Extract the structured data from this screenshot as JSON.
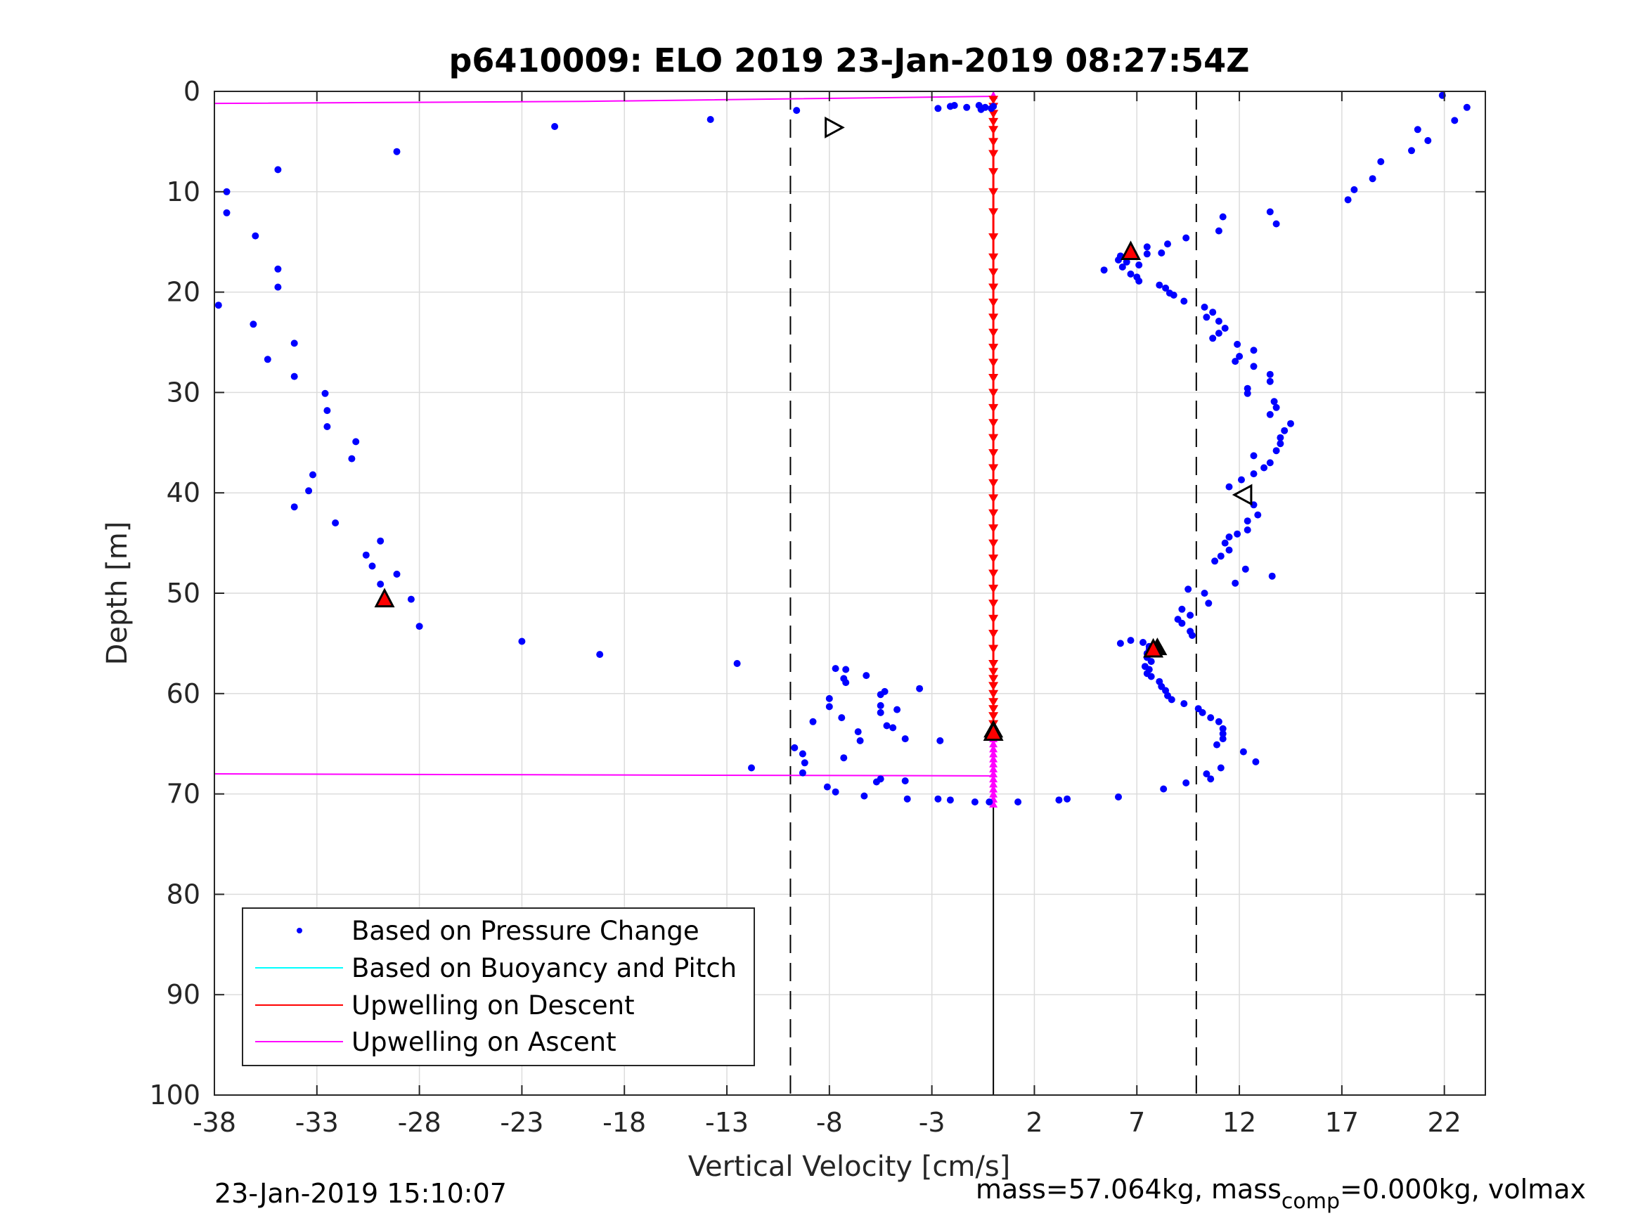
{
  "title": "p6410009: ELO 2019 23-Jan-2019 08:27:54Z",
  "footer": {
    "timestamp": "23-Jan-2019 15:10:07",
    "mass_text": "mass=57.064kg, mass",
    "mass_sub": "comp",
    "mass_tail": "=0.000kg, volmax"
  },
  "chart_data": {
    "type": "scatter",
    "title": "p6410009: ELO 2019 23-Jan-2019 08:27:54Z",
    "xlabel": "Vertical Velocity [cm/s]",
    "ylabel": "Depth [m]",
    "xlim": [
      -38,
      24
    ],
    "ylim": [
      0,
      100
    ],
    "y_reversed": true,
    "grid": true,
    "legend_position": "bottom-left",
    "xticks": [
      -38,
      -33,
      -28,
      -23,
      -18,
      -13,
      -8,
      -3,
      2,
      7,
      12,
      17,
      22
    ],
    "yticks": [
      0,
      10,
      20,
      30,
      40,
      50,
      60,
      70,
      80,
      90,
      100
    ],
    "reference_lines": {
      "dashed_x": [
        -9.9,
        9.9
      ],
      "solid_x": [
        0
      ]
    },
    "colors": {
      "pressure": "#0000ff",
      "buoyancy": "#00ffff",
      "descent": "#ff0000",
      "ascent": "#ff00ff"
    },
    "series": [
      {
        "name": "Based on Pressure Change",
        "kind": "points",
        "points": [
          [
            21.9,
            0.4
          ],
          [
            23.1,
            1.6
          ],
          [
            22.5,
            2.9
          ],
          [
            20.7,
            3.8
          ],
          [
            21.2,
            4.9
          ],
          [
            20.4,
            5.9
          ],
          [
            18.9,
            7.0
          ],
          [
            18.5,
            8.7
          ],
          [
            17.6,
            9.8
          ],
          [
            17.3,
            10.8
          ],
          [
            13.5,
            12.0
          ],
          [
            13.8,
            13.2
          ],
          [
            11.2,
            12.5
          ],
          [
            11.0,
            13.9
          ],
          [
            9.4,
            14.6
          ],
          [
            8.5,
            15.2
          ],
          [
            7.5,
            15.5
          ],
          [
            8.2,
            16.1
          ],
          [
            7.5,
            16.2
          ],
          [
            6.2,
            16.4
          ],
          [
            6.1,
            16.8
          ],
          [
            6.5,
            17.0
          ],
          [
            7.1,
            17.3
          ],
          [
            6.3,
            17.5
          ],
          [
            5.4,
            17.8
          ],
          [
            6.7,
            18.2
          ],
          [
            7.0,
            18.5
          ],
          [
            7.1,
            18.9
          ],
          [
            8.1,
            19.3
          ],
          [
            8.4,
            19.6
          ],
          [
            8.6,
            20.1
          ],
          [
            8.8,
            20.3
          ],
          [
            9.3,
            20.9
          ],
          [
            10.3,
            21.5
          ],
          [
            10.7,
            22.0
          ],
          [
            10.4,
            22.5
          ],
          [
            11.0,
            22.9
          ],
          [
            11.3,
            23.6
          ],
          [
            11.0,
            24.1
          ],
          [
            10.7,
            24.6
          ],
          [
            11.9,
            25.2
          ],
          [
            12.7,
            25.8
          ],
          [
            12.0,
            26.4
          ],
          [
            11.8,
            26.9
          ],
          [
            12.7,
            27.4
          ],
          [
            13.5,
            28.2
          ],
          [
            13.5,
            28.9
          ],
          [
            12.4,
            29.6
          ],
          [
            12.4,
            30.1
          ],
          [
            13.7,
            30.9
          ],
          [
            13.8,
            31.5
          ],
          [
            13.5,
            32.2
          ],
          [
            14.5,
            33.1
          ],
          [
            14.2,
            33.8
          ],
          [
            14.0,
            34.5
          ],
          [
            14.0,
            35.1
          ],
          [
            13.8,
            35.8
          ],
          [
            12.7,
            36.3
          ],
          [
            13.5,
            37.0
          ],
          [
            13.2,
            37.5
          ],
          [
            12.7,
            38.1
          ],
          [
            12.1,
            38.7
          ],
          [
            11.5,
            39.4
          ],
          [
            12.4,
            40.6
          ],
          [
            12.7,
            41.2
          ],
          [
            12.9,
            42.2
          ],
          [
            12.4,
            42.8
          ],
          [
            12.4,
            43.7
          ],
          [
            11.9,
            44.1
          ],
          [
            11.5,
            44.4
          ],
          [
            11.3,
            45.0
          ],
          [
            11.5,
            45.7
          ],
          [
            11.1,
            46.3
          ],
          [
            10.8,
            46.8
          ],
          [
            12.3,
            47.6
          ],
          [
            11.8,
            49.0
          ],
          [
            13.6,
            48.3
          ],
          [
            9.5,
            49.6
          ],
          [
            10.3,
            50.0
          ],
          [
            10.5,
            51.0
          ],
          [
            9.2,
            51.6
          ],
          [
            9.6,
            52.2
          ],
          [
            9.0,
            52.6
          ],
          [
            9.2,
            53.0
          ],
          [
            9.6,
            53.8
          ],
          [
            9.7,
            54.2
          ],
          [
            6.2,
            55.0
          ],
          [
            6.7,
            54.7
          ],
          [
            7.3,
            54.9
          ],
          [
            7.6,
            55.3
          ],
          [
            7.6,
            55.6
          ],
          [
            7.5,
            56.0
          ],
          [
            7.5,
            56.4
          ],
          [
            7.7,
            56.8
          ],
          [
            7.4,
            57.3
          ],
          [
            7.6,
            57.6
          ],
          [
            7.5,
            58.0
          ],
          [
            7.7,
            58.3
          ],
          [
            8.1,
            58.8
          ],
          [
            8.2,
            59.3
          ],
          [
            8.4,
            59.7
          ],
          [
            8.5,
            60.2
          ],
          [
            8.7,
            60.6
          ],
          [
            9.3,
            61.0
          ],
          [
            10.0,
            61.5
          ],
          [
            10.2,
            61.9
          ],
          [
            10.6,
            62.4
          ],
          [
            11.0,
            62.8
          ],
          [
            11.2,
            63.5
          ],
          [
            11.2,
            64.0
          ],
          [
            11.2,
            64.5
          ],
          [
            10.9,
            65.1
          ],
          [
            12.2,
            65.8
          ],
          [
            12.8,
            66.8
          ],
          [
            11.1,
            67.4
          ],
          [
            10.4,
            68.0
          ],
          [
            10.6,
            68.5
          ],
          [
            9.4,
            68.9
          ],
          [
            8.3,
            69.5
          ],
          [
            6.1,
            70.3
          ],
          [
            3.6,
            70.5
          ],
          [
            3.2,
            70.6
          ],
          [
            1.2,
            70.8
          ],
          [
            -0.2,
            70.8
          ],
          [
            -0.9,
            70.8
          ],
          [
            -2.1,
            70.6
          ],
          [
            -2.7,
            70.5
          ],
          [
            -4.2,
            70.5
          ],
          [
            -4.3,
            68.7
          ],
          [
            -5.5,
            68.5
          ],
          [
            -5.7,
            68.8
          ],
          [
            -6.3,
            70.2
          ],
          [
            -7.7,
            69.8
          ],
          [
            -8.1,
            69.3
          ],
          [
            -9.3,
            67.9
          ],
          [
            -9.2,
            66.9
          ],
          [
            -9.3,
            66.0
          ],
          [
            -9.7,
            65.4
          ],
          [
            -11.8,
            67.4
          ],
          [
            -7.3,
            66.4
          ],
          [
            -6.5,
            64.7
          ],
          [
            -6.6,
            63.8
          ],
          [
            -7.4,
            62.4
          ],
          [
            -8.8,
            62.8
          ],
          [
            -8.0,
            61.3
          ],
          [
            -8.0,
            60.5
          ],
          [
            -5.5,
            61.2
          ],
          [
            -5.5,
            61.9
          ],
          [
            -5.2,
            63.2
          ],
          [
            -4.9,
            63.4
          ],
          [
            -4.7,
            61.6
          ],
          [
            -4.3,
            64.5
          ],
          [
            -2.6,
            64.7
          ],
          [
            -3.6,
            59.5
          ],
          [
            -5.3,
            59.8
          ],
          [
            -5.5,
            60.1
          ],
          [
            -6.2,
            58.2
          ],
          [
            -7.2,
            57.6
          ],
          [
            -7.2,
            58.9
          ],
          [
            -7.3,
            58.5
          ],
          [
            -7.7,
            57.5
          ],
          [
            -12.5,
            57.0
          ],
          [
            -19.2,
            56.1
          ],
          [
            -23.0,
            54.8
          ],
          [
            -28.0,
            53.3
          ],
          [
            -28.4,
            50.6
          ],
          [
            -29.9,
            49.1
          ],
          [
            -29.1,
            48.1
          ],
          [
            -30.3,
            47.3
          ],
          [
            -30.6,
            46.2
          ],
          [
            -29.9,
            44.8
          ],
          [
            -32.1,
            43.0
          ],
          [
            -34.1,
            41.4
          ],
          [
            -33.4,
            39.8
          ],
          [
            -33.2,
            38.2
          ],
          [
            -31.3,
            36.6
          ],
          [
            -31.1,
            34.9
          ],
          [
            -32.5,
            33.4
          ],
          [
            -32.5,
            31.8
          ],
          [
            -32.6,
            30.1
          ],
          [
            -34.1,
            28.4
          ],
          [
            -35.4,
            26.7
          ],
          [
            -34.1,
            25.1
          ],
          [
            -36.1,
            23.2
          ],
          [
            -37.8,
            21.3
          ],
          [
            -34.9,
            19.5
          ],
          [
            -34.9,
            17.7
          ],
          [
            -36.0,
            14.4
          ],
          [
            -37.4,
            12.1
          ],
          [
            -37.4,
            10.0
          ],
          [
            -34.9,
            7.8
          ],
          [
            -29.1,
            6.0
          ],
          [
            -21.4,
            3.5
          ],
          [
            -13.8,
            2.8
          ],
          [
            -9.6,
            1.9
          ],
          [
            -2.7,
            1.7
          ],
          [
            -2.1,
            1.5
          ],
          [
            -1.9,
            1.4
          ],
          [
            -1.3,
            1.6
          ],
          [
            -0.7,
            1.4
          ],
          [
            -0.4,
            1.6
          ],
          [
            -0.1,
            1.7
          ],
          [
            0.0,
            1.5
          ],
          [
            -0.6,
            1.8
          ]
        ]
      },
      {
        "name": "Based on Buoyancy and Pitch",
        "kind": "line",
        "points": []
      },
      {
        "name": "Upwelling on Descent",
        "kind": "line",
        "points": [
          [
            0,
            0.5
          ],
          [
            0,
            2
          ],
          [
            0,
            4
          ],
          [
            0,
            6
          ],
          [
            0,
            8
          ],
          [
            0,
            10
          ],
          [
            0,
            12
          ],
          [
            0,
            14
          ],
          [
            0,
            16
          ],
          [
            0,
            18
          ],
          [
            0,
            20
          ],
          [
            0,
            22
          ],
          [
            0,
            24
          ],
          [
            0,
            26
          ],
          [
            0,
            28
          ],
          [
            0,
            30
          ],
          [
            0,
            32
          ],
          [
            0,
            34
          ],
          [
            0,
            36
          ],
          [
            0,
            38
          ],
          [
            0,
            40
          ],
          [
            0,
            42
          ],
          [
            0,
            44
          ],
          [
            0,
            46
          ],
          [
            0,
            48
          ],
          [
            0,
            50
          ],
          [
            0,
            52
          ],
          [
            0,
            54
          ],
          [
            0,
            56
          ],
          [
            0,
            58
          ],
          [
            0,
            60
          ],
          [
            0,
            62
          ],
          [
            0,
            64
          ]
        ],
        "marker_depths": [
          0.8,
          1.5,
          2.2,
          3,
          3.8,
          5,
          6.2,
          8,
          10,
          12,
          14.5,
          16.5,
          18,
          19.5,
          21,
          22.5,
          24,
          25.5,
          27,
          28.5,
          30,
          31.5,
          33,
          34.5,
          36,
          37.5,
          39,
          40.5,
          42,
          43.5,
          45,
          46.5,
          48,
          49.5,
          51,
          52.5,
          54,
          55.5,
          57,
          57.8,
          58.5,
          59.2,
          60,
          60.8,
          61.5,
          62.2,
          63,
          63.8
        ]
      },
      {
        "name": "Upwelling on Ascent",
        "kind": "line",
        "points": [
          [
            -38,
            1.2
          ],
          [
            -20,
            1.0
          ],
          [
            0,
            0.5
          ]
        ],
        "points_bottom": [
          [
            -38,
            68
          ],
          [
            -20,
            68.1
          ],
          [
            0,
            68.2
          ]
        ],
        "marker_depths": [
          0.4,
          64.5,
          65,
          65.5,
          66,
          66.5,
          67,
          67.5,
          68,
          68.5,
          69,
          69.5,
          70,
          70.5,
          71
        ]
      }
    ],
    "markers": {
      "red_triangles": [
        [
          6.7,
          16.0
        ],
        [
          7.8,
          55.6
        ],
        [
          0.0,
          63.9
        ],
        [
          -29.7,
          50.6
        ]
      ],
      "hollow_triangle_right": [
        [
          -7.8,
          3.6
        ]
      ],
      "hollow_triangle_left": [
        [
          12.2,
          40.2
        ]
      ],
      "black_triangle": [
        [
          8.0,
          55.4
        ],
        [
          0.0,
          63.6
        ]
      ]
    },
    "legend": [
      "Based on Pressure Change",
      "Based on Buoyancy and Pitch",
      "Upwelling on Descent",
      "Upwelling on Ascent"
    ]
  }
}
